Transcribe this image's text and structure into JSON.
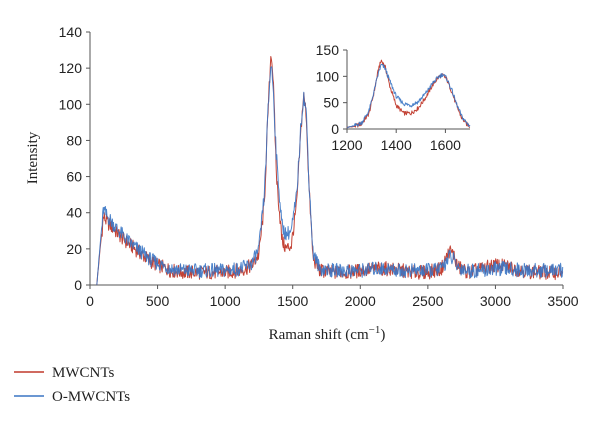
{
  "chart_data": [
    {
      "type": "line",
      "xlabel": "Raman shift (cm",
      "xlabel_sup": "−1",
      "xlabel_suffix": ")",
      "ylabel": "Intensity",
      "xlim": [
        0,
        3500
      ],
      "ylim": [
        0,
        140
      ],
      "x_ticks": [
        0,
        500,
        1000,
        1500,
        2000,
        2500,
        3000,
        3500
      ],
      "y_ticks": [
        0,
        20,
        40,
        60,
        80,
        100,
        120,
        140
      ],
      "grid": false,
      "legend_position": "bottom-left",
      "series": [
        {
          "name": "MWCNTs",
          "color": "#c0392b",
          "points": [
            [
              50,
              0
            ],
            [
              75,
              20
            ],
            [
              100,
              38
            ],
            [
              125,
              35
            ],
            [
              150,
              33
            ],
            [
              200,
              29
            ],
            [
              250,
              25
            ],
            [
              300,
              22
            ],
            [
              350,
              19
            ],
            [
              400,
              16
            ],
            [
              450,
              13
            ],
            [
              500,
              11
            ],
            [
              600,
              8
            ],
            [
              700,
              7
            ],
            [
              800,
              7
            ],
            [
              900,
              7
            ],
            [
              1000,
              7
            ],
            [
              1100,
              8
            ],
            [
              1150,
              9
            ],
            [
              1200,
              11
            ],
            [
              1250,
              17
            ],
            [
              1290,
              45
            ],
            [
              1320,
              100
            ],
            [
              1340,
              130
            ],
            [
              1355,
              115
            ],
            [
              1380,
              60
            ],
            [
              1420,
              25
            ],
            [
              1450,
              20
            ],
            [
              1490,
              22
            ],
            [
              1530,
              45
            ],
            [
              1560,
              85
            ],
            [
              1580,
              105
            ],
            [
              1600,
              95
            ],
            [
              1620,
              55
            ],
            [
              1650,
              15
            ],
            [
              1700,
              8
            ],
            [
              1800,
              7
            ],
            [
              1900,
              7
            ],
            [
              2000,
              8
            ],
            [
              2100,
              9
            ],
            [
              2200,
              9
            ],
            [
              2300,
              8
            ],
            [
              2400,
              7
            ],
            [
              2500,
              7
            ],
            [
              2600,
              9
            ],
            [
              2660,
              19
            ],
            [
              2690,
              17
            ],
            [
              2720,
              10
            ],
            [
              2800,
              7
            ],
            [
              2900,
              9
            ],
            [
              3000,
              11
            ],
            [
              3100,
              10
            ],
            [
              3200,
              8
            ],
            [
              3300,
              7
            ],
            [
              3400,
              7
            ],
            [
              3500,
              7
            ]
          ]
        },
        {
          "name": "O-MWCNTs",
          "color": "#3a75c4",
          "points": [
            [
              50,
              0
            ],
            [
              75,
              22
            ],
            [
              100,
              42
            ],
            [
              125,
              38
            ],
            [
              150,
              36
            ],
            [
              200,
              31
            ],
            [
              250,
              27
            ],
            [
              300,
              23
            ],
            [
              350,
              20
            ],
            [
              400,
              17
            ],
            [
              450,
              14
            ],
            [
              500,
              12
            ],
            [
              600,
              9
            ],
            [
              700,
              8
            ],
            [
              800,
              8
            ],
            [
              900,
              8
            ],
            [
              1000,
              8
            ],
            [
              1100,
              9
            ],
            [
              1150,
              10
            ],
            [
              1200,
              12
            ],
            [
              1250,
              20
            ],
            [
              1290,
              50
            ],
            [
              1320,
              100
            ],
            [
              1340,
              124
            ],
            [
              1355,
              110
            ],
            [
              1380,
              70
            ],
            [
              1420,
              33
            ],
            [
              1450,
              28
            ],
            [
              1490,
              30
            ],
            [
              1530,
              50
            ],
            [
              1560,
              88
            ],
            [
              1580,
              105
            ],
            [
              1600,
              96
            ],
            [
              1620,
              58
            ],
            [
              1650,
              18
            ],
            [
              1700,
              9
            ],
            [
              1800,
              8
            ],
            [
              1900,
              8
            ],
            [
              2000,
              8
            ],
            [
              2100,
              9
            ],
            [
              2200,
              9
            ],
            [
              2300,
              8
            ],
            [
              2400,
              8
            ],
            [
              2500,
              8
            ],
            [
              2600,
              9
            ],
            [
              2660,
              16
            ],
            [
              2690,
              14
            ],
            [
              2720,
              10
            ],
            [
              2800,
              8
            ],
            [
              2900,
              8
            ],
            [
              3000,
              9
            ],
            [
              3100,
              9
            ],
            [
              3200,
              8
            ],
            [
              3300,
              8
            ],
            [
              3400,
              8
            ],
            [
              3500,
              8
            ]
          ]
        }
      ]
    },
    {
      "type": "line",
      "inset": true,
      "xlim": [
        1200,
        1700
      ],
      "ylim": [
        0,
        150
      ],
      "x_ticks": [
        1200,
        1400,
        1600
      ],
      "y_ticks": [
        0,
        50,
        100,
        150
      ],
      "grid": false,
      "series": [
        {
          "name": "MWCNTs",
          "color": "#c0392b",
          "points": [
            [
              1200,
              3
            ],
            [
              1230,
              5
            ],
            [
              1260,
              10
            ],
            [
              1290,
              30
            ],
            [
              1310,
              70
            ],
            [
              1330,
              118
            ],
            [
              1340,
              130
            ],
            [
              1355,
              118
            ],
            [
              1375,
              80
            ],
            [
              1400,
              45
            ],
            [
              1430,
              30
            ],
            [
              1460,
              30
            ],
            [
              1490,
              40
            ],
            [
              1520,
              60
            ],
            [
              1550,
              85
            ],
            [
              1575,
              100
            ],
            [
              1590,
              102
            ],
            [
              1605,
              95
            ],
            [
              1625,
              72
            ],
            [
              1645,
              45
            ],
            [
              1665,
              22
            ],
            [
              1685,
              10
            ],
            [
              1700,
              5
            ]
          ]
        },
        {
          "name": "O-MWCNTs",
          "color": "#3a75c4",
          "points": [
            [
              1200,
              3
            ],
            [
              1230,
              6
            ],
            [
              1260,
              12
            ],
            [
              1290,
              35
            ],
            [
              1310,
              72
            ],
            [
              1330,
              110
            ],
            [
              1340,
              122
            ],
            [
              1355,
              115
            ],
            [
              1375,
              90
            ],
            [
              1400,
              62
            ],
            [
              1430,
              48
            ],
            [
              1460,
              45
            ],
            [
              1490,
              52
            ],
            [
              1520,
              68
            ],
            [
              1550,
              88
            ],
            [
              1575,
              100
            ],
            [
              1590,
              104
            ],
            [
              1605,
              96
            ],
            [
              1625,
              75
            ],
            [
              1645,
              48
            ],
            [
              1665,
              25
            ],
            [
              1685,
              12
            ],
            [
              1700,
              6
            ]
          ]
        }
      ]
    }
  ]
}
